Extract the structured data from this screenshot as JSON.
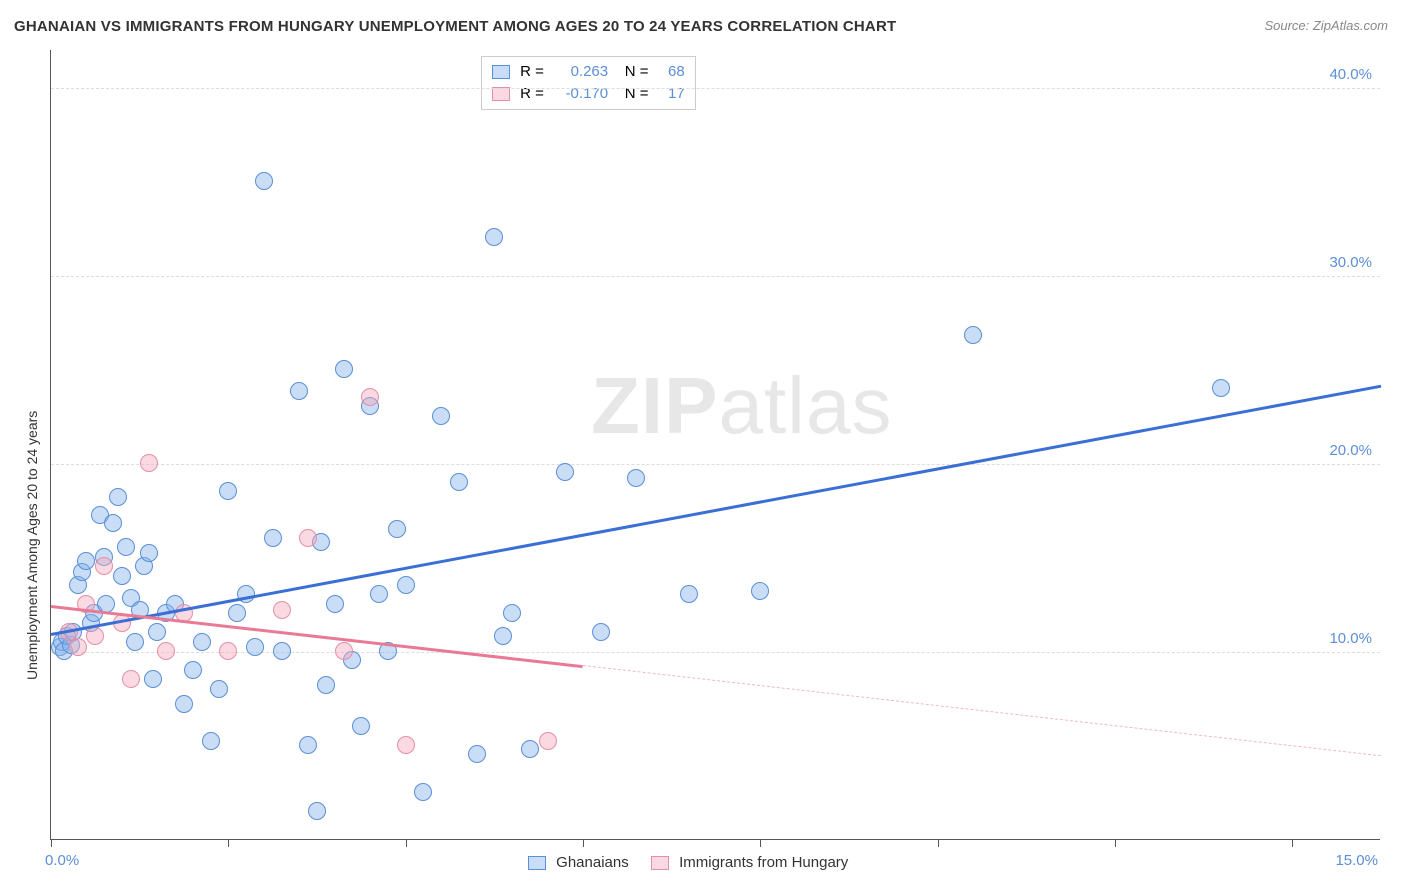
{
  "title": "GHANAIAN VS IMMIGRANTS FROM HUNGARY UNEMPLOYMENT AMONG AGES 20 TO 24 YEARS CORRELATION CHART",
  "source_label": "Source: ZipAtlas.com",
  "ylabel": "Unemployment Among Ages 20 to 24 years",
  "watermark_bold": "ZIP",
  "watermark_light": "atlas",
  "chart": {
    "type": "scatter",
    "background_color": "#ffffff",
    "grid_color": "#dddddd",
    "axis_color": "#555555",
    "xlim": [
      0,
      15
    ],
    "ylim": [
      0,
      42
    ],
    "x_ticks": [
      0,
      2,
      4,
      6,
      8,
      10,
      12,
      14
    ],
    "x_tick_labels": {
      "0": "0.0%",
      "15": "15.0%"
    },
    "y_gridlines": [
      10,
      20,
      30,
      40
    ],
    "y_tick_labels": {
      "10": "10.0%",
      "20": "20.0%",
      "30": "30.0%",
      "40": "40.0%"
    },
    "marker_radius": 9,
    "series": [
      {
        "name": "Ghanaians",
        "color_fill": "rgba(135,180,235,0.45)",
        "color_stroke": "#5b8fd6",
        "regression": {
          "x0": 0,
          "y0": 11.0,
          "x1": 15,
          "y1": 24.2,
          "line_color": "#3b6fd6",
          "line_width": 3,
          "dashed_from": null
        },
        "R": "0.263",
        "N": "68",
        "points": [
          [
            0.1,
            10.2
          ],
          [
            0.12,
            10.5
          ],
          [
            0.15,
            10.0
          ],
          [
            0.18,
            10.8
          ],
          [
            0.22,
            10.3
          ],
          [
            0.25,
            11.0
          ],
          [
            0.3,
            13.5
          ],
          [
            0.35,
            14.2
          ],
          [
            0.4,
            14.8
          ],
          [
            0.45,
            11.5
          ],
          [
            0.48,
            12.0
          ],
          [
            0.55,
            17.2
          ],
          [
            0.6,
            15.0
          ],
          [
            0.62,
            12.5
          ],
          [
            0.7,
            16.8
          ],
          [
            0.75,
            18.2
          ],
          [
            0.8,
            14.0
          ],
          [
            0.85,
            15.5
          ],
          [
            0.9,
            12.8
          ],
          [
            0.95,
            10.5
          ],
          [
            1.0,
            12.2
          ],
          [
            1.05,
            14.5
          ],
          [
            1.1,
            15.2
          ],
          [
            1.15,
            8.5
          ],
          [
            1.2,
            11.0
          ],
          [
            1.3,
            12.0
          ],
          [
            1.4,
            12.5
          ],
          [
            1.5,
            7.2
          ],
          [
            1.6,
            9.0
          ],
          [
            1.7,
            10.5
          ],
          [
            1.8,
            5.2
          ],
          [
            1.9,
            8.0
          ],
          [
            2.0,
            18.5
          ],
          [
            2.1,
            12.0
          ],
          [
            2.2,
            13.0
          ],
          [
            2.3,
            10.2
          ],
          [
            2.4,
            35.0
          ],
          [
            2.5,
            16.0
          ],
          [
            2.6,
            10.0
          ],
          [
            2.8,
            23.8
          ],
          [
            2.9,
            5.0
          ],
          [
            3.0,
            1.5
          ],
          [
            3.1,
            8.2
          ],
          [
            3.2,
            12.5
          ],
          [
            3.3,
            25.0
          ],
          [
            3.4,
            9.5
          ],
          [
            3.5,
            6.0
          ],
          [
            3.6,
            23.0
          ],
          [
            3.7,
            13.0
          ],
          [
            3.8,
            10.0
          ],
          [
            3.9,
            16.5
          ],
          [
            4.0,
            13.5
          ],
          [
            4.2,
            2.5
          ],
          [
            4.4,
            22.5
          ],
          [
            4.6,
            19.0
          ],
          [
            4.8,
            4.5
          ],
          [
            5.0,
            32.0
          ],
          [
            5.1,
            10.8
          ],
          [
            5.2,
            12.0
          ],
          [
            5.4,
            4.8
          ],
          [
            5.8,
            19.5
          ],
          [
            6.2,
            11.0
          ],
          [
            6.6,
            19.2
          ],
          [
            7.2,
            13.0
          ],
          [
            8.0,
            13.2
          ],
          [
            10.4,
            26.8
          ],
          [
            13.2,
            24.0
          ],
          [
            3.05,
            15.8
          ]
        ]
      },
      {
        "name": "Immigrants from Hungary",
        "color_fill": "rgba(245,170,190,0.45)",
        "color_stroke": "#e58fa5",
        "regression": {
          "x0": 0,
          "y0": 12.5,
          "x1": 15,
          "y1": 4.5,
          "line_color_solid": "#e87a96",
          "line_color_dash": "#f0b8c5",
          "line_width": 2.5,
          "dashed_from": 6.0
        },
        "R": "-0.170",
        "N": "17",
        "points": [
          [
            0.2,
            11.0
          ],
          [
            0.3,
            10.2
          ],
          [
            0.4,
            12.5
          ],
          [
            0.5,
            10.8
          ],
          [
            0.6,
            14.5
          ],
          [
            0.8,
            11.5
          ],
          [
            0.9,
            8.5
          ],
          [
            1.1,
            20.0
          ],
          [
            1.3,
            10.0
          ],
          [
            1.5,
            12.0
          ],
          [
            2.0,
            10.0
          ],
          [
            2.6,
            12.2
          ],
          [
            2.9,
            16.0
          ],
          [
            3.3,
            10.0
          ],
          [
            3.6,
            23.5
          ],
          [
            4.0,
            5.0
          ],
          [
            5.6,
            5.2
          ]
        ]
      }
    ],
    "legend_top": {
      "rows": [
        {
          "swatch": "blue",
          "r_label": "R =",
          "r_val": "0.263",
          "n_label": "N =",
          "n_val": "68"
        },
        {
          "swatch": "pink",
          "r_label": "R =",
          "r_val": "-0.170",
          "n_label": "N =",
          "n_val": "17"
        }
      ]
    },
    "legend_bottom": {
      "items": [
        {
          "swatch": "blue",
          "label": "Ghanaians"
        },
        {
          "swatch": "pink",
          "label": "Immigrants from Hungary"
        }
      ]
    }
  }
}
